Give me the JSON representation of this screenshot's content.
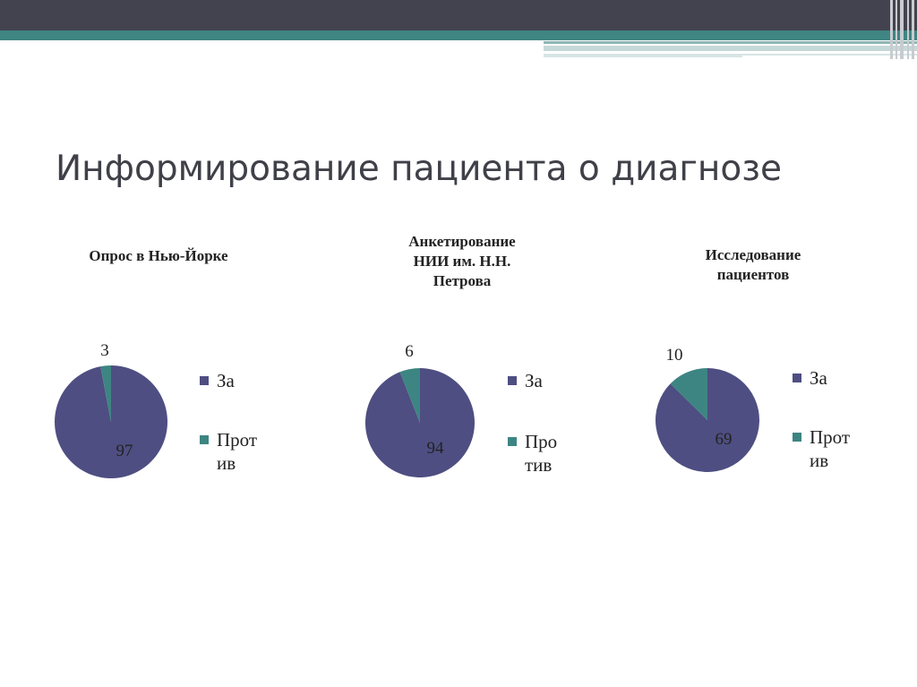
{
  "slide": {
    "title": "Информирование пациента о диагнозе"
  },
  "theme": {
    "dark": "#43434f",
    "teal": "#3f8582",
    "color_za": "#4e4e82",
    "color_protiv": "#3d8582"
  },
  "chart_data": [
    {
      "type": "pie",
      "title": "Опрос в Нью-Йорке",
      "categories": [
        "За",
        "Против"
      ],
      "values": [
        97,
        3
      ],
      "data_labels": [
        "97",
        "3"
      ],
      "legend": {
        "placement": "right",
        "labels": [
          "За",
          "Прот\nив"
        ]
      }
    },
    {
      "type": "pie",
      "title": "Анкетирование\nНИИ им. Н.Н.\nПетрова",
      "categories": [
        "За",
        "Против"
      ],
      "values": [
        94,
        6
      ],
      "data_labels": [
        "94",
        "6"
      ],
      "legend": {
        "placement": "right",
        "labels": [
          "За",
          "Про\nтив"
        ]
      }
    },
    {
      "type": "pie",
      "title": "Исследование\nпациентов",
      "categories": [
        "За",
        "Против"
      ],
      "values": [
        69,
        10
      ],
      "data_labels": [
        "69",
        "10"
      ],
      "legend": {
        "placement": "right",
        "labels": [
          "За",
          "Прот\nив"
        ]
      }
    }
  ]
}
